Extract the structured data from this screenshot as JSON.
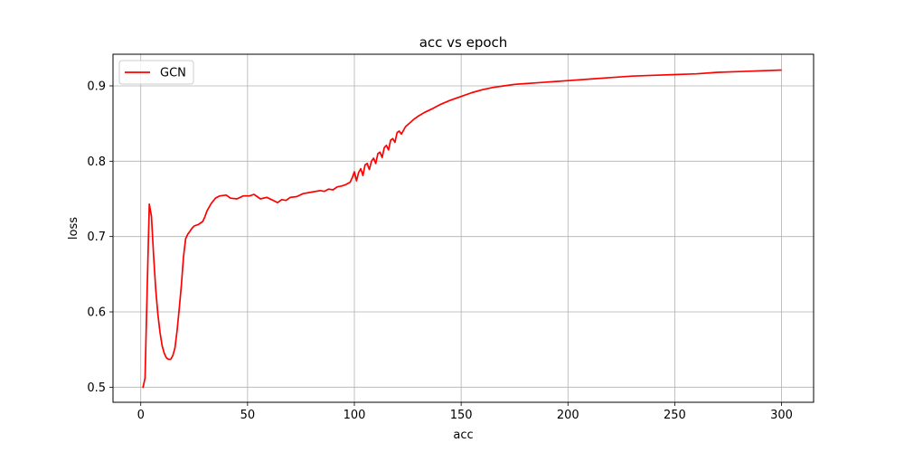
{
  "chart_data": {
    "type": "line",
    "title": "acc vs epoch",
    "xlabel": "acc",
    "ylabel": "loss",
    "xlim": [
      -13,
      315
    ],
    "ylim": [
      0.48,
      0.942
    ],
    "xticks": [
      0,
      50,
      100,
      150,
      200,
      250,
      300
    ],
    "yticks": [
      0.5,
      0.6,
      0.7,
      0.8,
      0.9
    ],
    "grid": true,
    "legend": {
      "position": "top-left"
    },
    "series": [
      {
        "name": "GCN",
        "color": "#ff0000",
        "points": [
          [
            1,
            0.499
          ],
          [
            2,
            0.512
          ],
          [
            3,
            0.63
          ],
          [
            4,
            0.743
          ],
          [
            5,
            0.727
          ],
          [
            6,
            0.675
          ],
          [
            7,
            0.63
          ],
          [
            8,
            0.597
          ],
          [
            9,
            0.573
          ],
          [
            10,
            0.555
          ],
          [
            11,
            0.545
          ],
          [
            12,
            0.539
          ],
          [
            13,
            0.537
          ],
          [
            14,
            0.537
          ],
          [
            15,
            0.542
          ],
          [
            16,
            0.552
          ],
          [
            17,
            0.575
          ],
          [
            18,
            0.604
          ],
          [
            19,
            0.635
          ],
          [
            20,
            0.673
          ],
          [
            21,
            0.697
          ],
          [
            22,
            0.703
          ],
          [
            23,
            0.707
          ],
          [
            24,
            0.711
          ],
          [
            25,
            0.714
          ],
          [
            27,
            0.716
          ],
          [
            29,
            0.72
          ],
          [
            30,
            0.726
          ],
          [
            31,
            0.734
          ],
          [
            33,
            0.744
          ],
          [
            35,
            0.751
          ],
          [
            37,
            0.754
          ],
          [
            40,
            0.755
          ],
          [
            42,
            0.751
          ],
          [
            45,
            0.75
          ],
          [
            48,
            0.754
          ],
          [
            51,
            0.754
          ],
          [
            53,
            0.756
          ],
          [
            56,
            0.75
          ],
          [
            59,
            0.752
          ],
          [
            62,
            0.748
          ],
          [
            64,
            0.745
          ],
          [
            66,
            0.749
          ],
          [
            68,
            0.748
          ],
          [
            70,
            0.752
          ],
          [
            73,
            0.753
          ],
          [
            76,
            0.757
          ],
          [
            80,
            0.759
          ],
          [
            84,
            0.761
          ],
          [
            86,
            0.76
          ],
          [
            88,
            0.763
          ],
          [
            90,
            0.762
          ],
          [
            92,
            0.766
          ],
          [
            94,
            0.767
          ],
          [
            96,
            0.769
          ],
          [
            98,
            0.772
          ],
          [
            99,
            0.778
          ],
          [
            100,
            0.786
          ],
          [
            101,
            0.774
          ],
          [
            102,
            0.785
          ],
          [
            103,
            0.79
          ],
          [
            104,
            0.781
          ],
          [
            105,
            0.795
          ],
          [
            106,
            0.797
          ],
          [
            107,
            0.789
          ],
          [
            108,
            0.8
          ],
          [
            109,
            0.804
          ],
          [
            110,
            0.797
          ],
          [
            111,
            0.81
          ],
          [
            112,
            0.812
          ],
          [
            113,
            0.805
          ],
          [
            114,
            0.818
          ],
          [
            115,
            0.821
          ],
          [
            116,
            0.815
          ],
          [
            117,
            0.828
          ],
          [
            118,
            0.83
          ],
          [
            119,
            0.825
          ],
          [
            120,
            0.838
          ],
          [
            121,
            0.84
          ],
          [
            122,
            0.836
          ],
          [
            124,
            0.846
          ],
          [
            126,
            0.851
          ],
          [
            128,
            0.856
          ],
          [
            130,
            0.86
          ],
          [
            133,
            0.865
          ],
          [
            136,
            0.869
          ],
          [
            140,
            0.875
          ],
          [
            145,
            0.881
          ],
          [
            150,
            0.886
          ],
          [
            155,
            0.891
          ],
          [
            160,
            0.895
          ],
          [
            165,
            0.898
          ],
          [
            170,
            0.9
          ],
          [
            175,
            0.902
          ],
          [
            180,
            0.903
          ],
          [
            185,
            0.904
          ],
          [
            190,
            0.905
          ],
          [
            195,
            0.906
          ],
          [
            200,
            0.907
          ],
          [
            210,
            0.909
          ],
          [
            220,
            0.911
          ],
          [
            230,
            0.913
          ],
          [
            240,
            0.914
          ],
          [
            250,
            0.915
          ],
          [
            260,
            0.916
          ],
          [
            270,
            0.918
          ],
          [
            280,
            0.919
          ],
          [
            290,
            0.92
          ],
          [
            300,
            0.921
          ]
        ]
      }
    ]
  }
}
